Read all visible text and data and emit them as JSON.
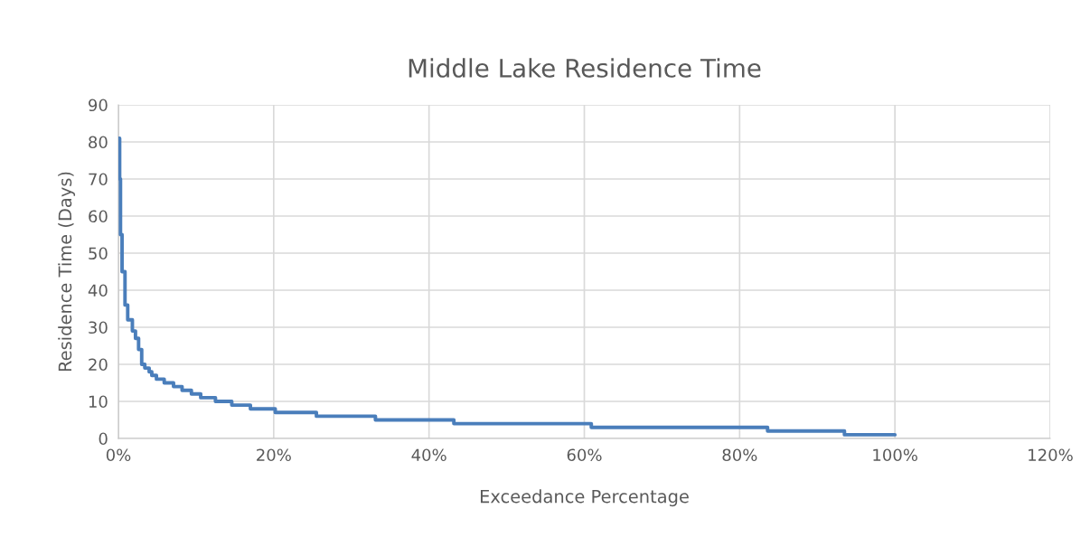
{
  "chart_data": {
    "type": "step",
    "title": "Middle Lake Residence Time",
    "xlabel": "Exceedance Percentage",
    "ylabel": "Residence Time (Days)",
    "x": [
      0,
      0.16,
      0.27,
      0.47,
      0.85,
      1.2,
      1.8,
      2.2,
      2.6,
      3.0,
      3.4,
      3.96,
      4.3,
      4.9,
      5.9,
      7.1,
      8.2,
      9.4,
      10.6,
      12.5,
      14.6,
      17.0,
      20.2,
      25.5,
      33.1,
      43.2,
      60.9,
      83.6,
      93.5,
      100
    ],
    "series": [
      {
        "color": "#4a7ebb",
        "values": [
          81,
          70,
          55,
          45,
          36,
          32,
          29,
          27,
          24,
          20,
          19,
          18,
          17,
          16,
          15,
          14,
          13,
          12,
          11,
          10,
          9,
          8,
          7,
          6,
          5,
          4,
          3,
          2,
          1,
          1
        ]
      }
    ],
    "xlim": [
      0,
      120
    ],
    "xticks": [
      {
        "value": 0,
        "label": "0%"
      },
      {
        "value": 20,
        "label": "20%"
      },
      {
        "value": 40,
        "label": "40%"
      },
      {
        "value": 60,
        "label": "60%"
      },
      {
        "value": 80,
        "label": "80%"
      },
      {
        "value": 100,
        "label": "100%"
      },
      {
        "value": 120,
        "label": "120%"
      }
    ],
    "ylim": [
      0,
      90
    ],
    "yticks": [
      0,
      10,
      20,
      30,
      40,
      50,
      60,
      70,
      80,
      90
    ],
    "grid": true
  }
}
